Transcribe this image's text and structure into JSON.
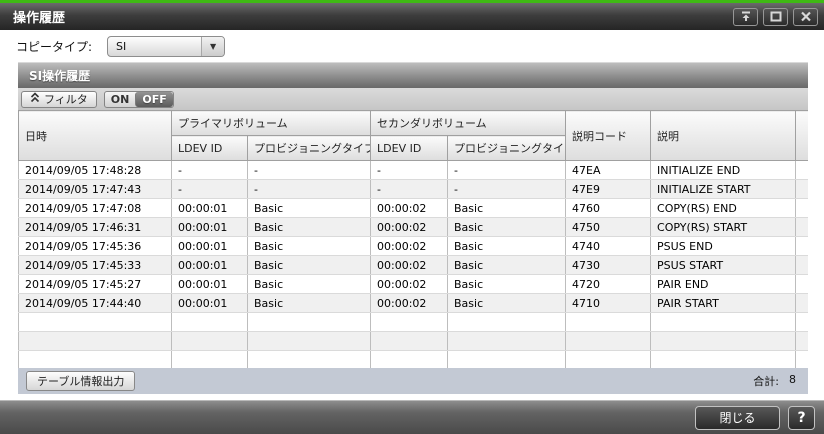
{
  "colors": {
    "accent_green": "#3FB914",
    "title_bar": "#3d3d3d",
    "table_footer_bar": "#c3c9d4",
    "row_stripe": "#f0f0f0"
  },
  "window": {
    "title": "操作履歴"
  },
  "toolbar": {
    "copy_type_label": "コピータイプ:",
    "copy_type_value": "SI",
    "dropdown_arrow": "▼"
  },
  "table": {
    "section_title": "SI操作履歴",
    "filter": {
      "button_label": "フィルタ",
      "on_label": "ON",
      "off_label": "OFF",
      "selected": "OFF"
    },
    "headers": {
      "datetime": "日時",
      "primary_group": "プライマリボリューム",
      "secondary_group": "セカンダリボリューム",
      "ldev_id": "LDEV ID",
      "prov_type": "プロビジョニングタイプ",
      "code": "説明コード",
      "description": "説明"
    },
    "cell_names": [
      "datetime",
      "primary-ldev-id",
      "primary-prov-type",
      "secondary-ldev-id",
      "secondary-prov-type",
      "code",
      "description"
    ],
    "rows": [
      [
        "2014/09/05 17:48:28",
        "-",
        "-",
        "-",
        "-",
        "47EA",
        "INITIALIZE END"
      ],
      [
        "2014/09/05 17:47:43",
        "-",
        "-",
        "-",
        "-",
        "47E9",
        "INITIALIZE START"
      ],
      [
        "2014/09/05 17:47:08",
        "00:00:01",
        "Basic",
        "00:00:02",
        "Basic",
        "4760",
        "COPY(RS) END"
      ],
      [
        "2014/09/05 17:46:31",
        "00:00:01",
        "Basic",
        "00:00:02",
        "Basic",
        "4750",
        "COPY(RS) START"
      ],
      [
        "2014/09/05 17:45:36",
        "00:00:01",
        "Basic",
        "00:00:02",
        "Basic",
        "4740",
        "PSUS END"
      ],
      [
        "2014/09/05 17:45:33",
        "00:00:01",
        "Basic",
        "00:00:02",
        "Basic",
        "4730",
        "PSUS START"
      ],
      [
        "2014/09/05 17:45:27",
        "00:00:01",
        "Basic",
        "00:00:02",
        "Basic",
        "4720",
        "PAIR END"
      ],
      [
        "2014/09/05 17:44:40",
        "00:00:01",
        "Basic",
        "00:00:02",
        "Basic",
        "4710",
        "PAIR START"
      ]
    ],
    "empty_row_count": 3,
    "footer": {
      "export_button_label": "テーブル情報出力",
      "total_label": "合計:",
      "total_value": "8"
    }
  },
  "bottom_bar": {
    "close_button_label": "閉じる",
    "help_button_label": "?"
  }
}
